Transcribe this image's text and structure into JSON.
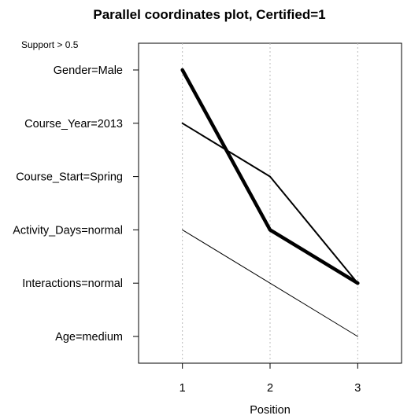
{
  "chart_data": {
    "type": "line",
    "title": "Parallel coordinates plot, Certified=1",
    "annotation": "Support > 0.5",
    "xlabel": "Position",
    "ylabel": "",
    "x": [
      1,
      2,
      3
    ],
    "xlim": [
      0.5,
      3.5
    ],
    "y_categories": [
      "Gender=Male",
      "Course_Year=2013",
      "Course_Start=Spring",
      "Activity_Days=normal",
      "Interactions=normal",
      "Age=medium"
    ],
    "grid": "vertical dotted at x ticks",
    "series": [
      {
        "values": [
          "Gender=Male",
          "Activity_Days=normal",
          "Interactions=normal"
        ],
        "weight": 3
      },
      {
        "values": [
          "Course_Year=2013",
          "Course_Start=Spring",
          "Interactions=normal"
        ],
        "weight": 2
      },
      {
        "values": [
          "Activity_Days=normal",
          "Interactions=normal",
          "Age=medium"
        ],
        "weight": 1
      }
    ],
    "colors": {
      "line": "#000000",
      "grid": "#bbbbbb"
    }
  }
}
